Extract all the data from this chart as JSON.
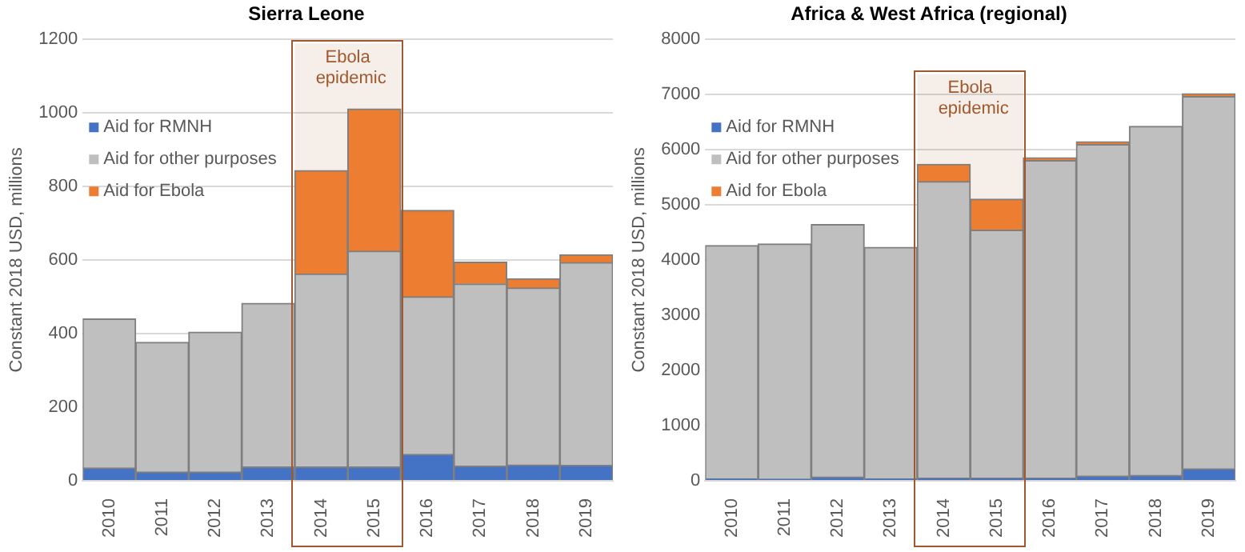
{
  "chart_data": [
    {
      "type": "bar",
      "title": "Sierra Leone",
      "ylabel": "Constant 2018 USD, millions",
      "categories": [
        "2010",
        "2011",
        "2012",
        "2013",
        "2014",
        "2015",
        "2016",
        "2017",
        "2018",
        "2019"
      ],
      "stacked": true,
      "legend": "top left",
      "grid": "y",
      "ylim": [
        0,
        1200
      ],
      "yticks": [
        0,
        200,
        400,
        600,
        800,
        1000,
        1200
      ],
      "series": [
        {
          "name": "Aid for RMNH",
          "color": "#4472c4",
          "values": [
            35,
            24,
            24,
            38,
            38,
            38,
            72,
            40,
            43,
            42
          ]
        },
        {
          "name": "Aid for other purposes",
          "color": "#bfbfbf",
          "values": [
            405,
            352,
            380,
            444,
            524,
            586,
            428,
            495,
            481,
            551
          ]
        },
        {
          "name": "Aid for Ebola",
          "color": "#ed7d31",
          "values": [
            0,
            0,
            0,
            0,
            281,
            386,
            235,
            59,
            25,
            21
          ]
        }
      ],
      "bands": [
        {
          "axis": "x",
          "from": "2014",
          "to": "2015",
          "label": "Ebola epidemic",
          "color": "#a0582c"
        }
      ]
    },
    {
      "type": "bar",
      "title": "Africa & West Africa (regional)",
      "ylabel": "Constant 2018 USD, millions",
      "categories": [
        "2010",
        "2011",
        "2012",
        "2013",
        "2014",
        "2015",
        "2016",
        "2017",
        "2018",
        "2019"
      ],
      "stacked": true,
      "legend": "top left",
      "grid": "y",
      "ylim": [
        0,
        8000
      ],
      "yticks": [
        0,
        1000,
        2000,
        3000,
        4000,
        5000,
        6000,
        7000,
        8000
      ],
      "series": [
        {
          "name": "Aid for RMNH",
          "color": "#4472c4",
          "values": [
            40,
            30,
            70,
            40,
            50,
            50,
            50,
            90,
            100,
            220
          ]
        },
        {
          "name": "Aid for other purposes",
          "color": "#bfbfbf",
          "values": [
            4220,
            4260,
            4570,
            4190,
            5370,
            4490,
            5750,
            6000,
            6320,
            6740
          ]
        },
        {
          "name": "Aid for Ebola",
          "color": "#ed7d31",
          "values": [
            0,
            0,
            0,
            0,
            310,
            560,
            50,
            50,
            0,
            50
          ]
        }
      ],
      "bands": [
        {
          "axis": "x",
          "from": "2014",
          "to": "2015",
          "label": "Ebola epidemic",
          "color": "#a0582c"
        }
      ]
    }
  ]
}
